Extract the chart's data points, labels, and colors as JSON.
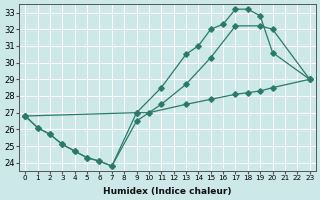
{
  "bg_color": "#cce8e8",
  "grid_color": "#ffffff",
  "line_color": "#2a7a6a",
  "xlabel": "Humidex (Indice chaleur)",
  "xlim": [
    -0.5,
    23.5
  ],
  "ylim": [
    23.5,
    33.5
  ],
  "xticks": [
    0,
    1,
    2,
    3,
    4,
    5,
    6,
    7,
    8,
    9,
    10,
    11,
    12,
    13,
    14,
    15,
    16,
    17,
    18,
    19,
    20,
    21,
    22,
    23
  ],
  "yticks": [
    24,
    25,
    26,
    27,
    28,
    29,
    30,
    31,
    32,
    33
  ],
  "line1_x": [
    0,
    1,
    2,
    3,
    4,
    5,
    6,
    7,
    9,
    11,
    13,
    15,
    17,
    19,
    20,
    23
  ],
  "line1_y": [
    26.8,
    26.1,
    25.7,
    25.1,
    24.7,
    24.3,
    24.1,
    23.8,
    26.5,
    27.5,
    28.7,
    30.3,
    32.2,
    32.2,
    32.0,
    29.0
  ],
  "line2_x": [
    0,
    1,
    2,
    3,
    4,
    5,
    6,
    7,
    9,
    11,
    13,
    14,
    15,
    16,
    17,
    18,
    19,
    20,
    23
  ],
  "line2_y": [
    26.8,
    26.1,
    25.7,
    25.1,
    24.7,
    24.3,
    24.1,
    23.8,
    27.0,
    28.5,
    30.5,
    31.0,
    32.0,
    32.3,
    33.2,
    33.2,
    32.8,
    30.6,
    29.0
  ],
  "line3_x": [
    0,
    9,
    10,
    13,
    15,
    17,
    18,
    19,
    20,
    23
  ],
  "line3_y": [
    26.8,
    27.0,
    27.0,
    27.5,
    27.8,
    28.1,
    28.2,
    28.3,
    28.5,
    29.0
  ]
}
